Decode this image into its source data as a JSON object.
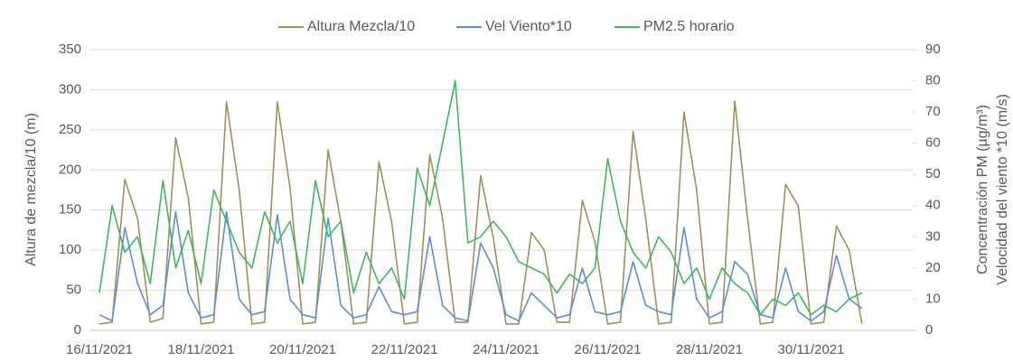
{
  "chart_data": {
    "type": "line",
    "ylabel": "Altura de mezcla/10 (m)",
    "y2label": "Concentración PM (µg/m³)",
    "y2label2": "Velocidad del viento *10 (m/s)",
    "categories": [
      "16/11/2021",
      null,
      null,
      null,
      null,
      null,
      null,
      null,
      "18/11/2021",
      null,
      null,
      null,
      null,
      null,
      null,
      null,
      "20/11/2021",
      null,
      null,
      null,
      null,
      null,
      null,
      null,
      "22/11/2021",
      null,
      null,
      null,
      null,
      null,
      null,
      null,
      "24/11/2021",
      null,
      null,
      null,
      null,
      null,
      null,
      null,
      "26/11/2021",
      null,
      null,
      null,
      null,
      null,
      null,
      null,
      "28/11/2021",
      null,
      null,
      null,
      null,
      null,
      null,
      null,
      "30/11/2021",
      null,
      null,
      null,
      null,
      null,
      null,
      null,
      null
    ],
    "series": [
      {
        "name": "Altura Mezcla/10",
        "color": "#a0905a",
        "axis": "y",
        "values": [
          8,
          10,
          188,
          140,
          10,
          15,
          240,
          165,
          8,
          10,
          285,
          175,
          8,
          10,
          285,
          178,
          8,
          10,
          225,
          135,
          8,
          10,
          210,
          135,
          8,
          10,
          219,
          140,
          10,
          10,
          193,
          115,
          8,
          8,
          122,
          100,
          10,
          10,
          162,
          110,
          8,
          10,
          248,
          138,
          8,
          10,
          272,
          175,
          8,
          10,
          286,
          140,
          8,
          10,
          182,
          155,
          8,
          10,
          130,
          100,
          8,
          null,
          null,
          null,
          null
        ]
      },
      {
        "name": "Vel Viento*10",
        "color": "#5b8fd6",
        "axis": "y2",
        "values": [
          5,
          3,
          33,
          15,
          5,
          8,
          38,
          12,
          4,
          5,
          38,
          10,
          5,
          6,
          37,
          10,
          5,
          4,
          36,
          8,
          4,
          5,
          14,
          6,
          5,
          6,
          30,
          8,
          4,
          3,
          28,
          20,
          5,
          3,
          12,
          8,
          4,
          5,
          20,
          6,
          5,
          6,
          22,
          8,
          6,
          5,
          33,
          10,
          4,
          6,
          22,
          18,
          5,
          4,
          20,
          6,
          3,
          6,
          24,
          10,
          7,
          null,
          null,
          null,
          null
        ]
      },
      {
        "name": "PM2.5 horario",
        "color": "#3cb95b",
        "axis": "y2",
        "values": [
          12,
          40,
          25,
          30,
          15,
          48,
          20,
          32,
          15,
          45,
          35,
          25,
          20,
          38,
          28,
          35,
          15,
          48,
          30,
          35,
          12,
          25,
          15,
          20,
          10,
          52,
          40,
          60,
          80,
          28,
          30,
          35,
          30,
          22,
          20,
          18,
          12,
          18,
          15,
          20,
          55,
          35,
          25,
          20,
          30,
          25,
          15,
          20,
          10,
          20,
          15,
          12,
          5,
          10,
          8,
          12,
          5,
          8,
          6,
          10,
          12,
          null,
          null,
          null,
          null
        ]
      }
    ],
    "ylim": [
      0,
      350
    ],
    "yticks": [
      0,
      50,
      100,
      150,
      200,
      250,
      300,
      350
    ],
    "y2lim": [
      0,
      90
    ],
    "y2ticks": [
      0,
      10,
      20,
      30,
      40,
      50,
      60,
      70,
      80,
      90
    ],
    "grid": true,
    "legend": "top"
  }
}
